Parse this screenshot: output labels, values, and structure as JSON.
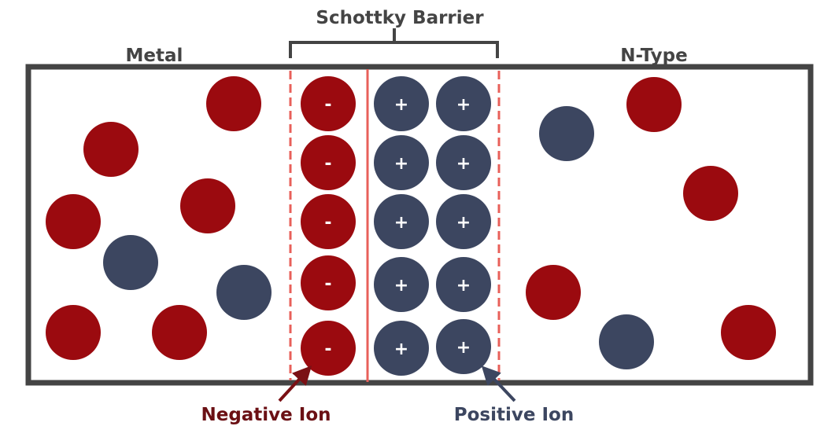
{
  "title": "Schottky Barrier",
  "regions": {
    "left": "Metal",
    "right": "N-Type"
  },
  "signs": {
    "negative": "-",
    "positive": "+"
  },
  "legend": {
    "negative": "Negative Ion",
    "positive": "Positive Ion"
  },
  "colors": {
    "negative": "#9b0a0f",
    "positive": "#3c4660",
    "negative_label": "#6b1014",
    "border": "#444444",
    "boundary": "#e8605a"
  }
}
